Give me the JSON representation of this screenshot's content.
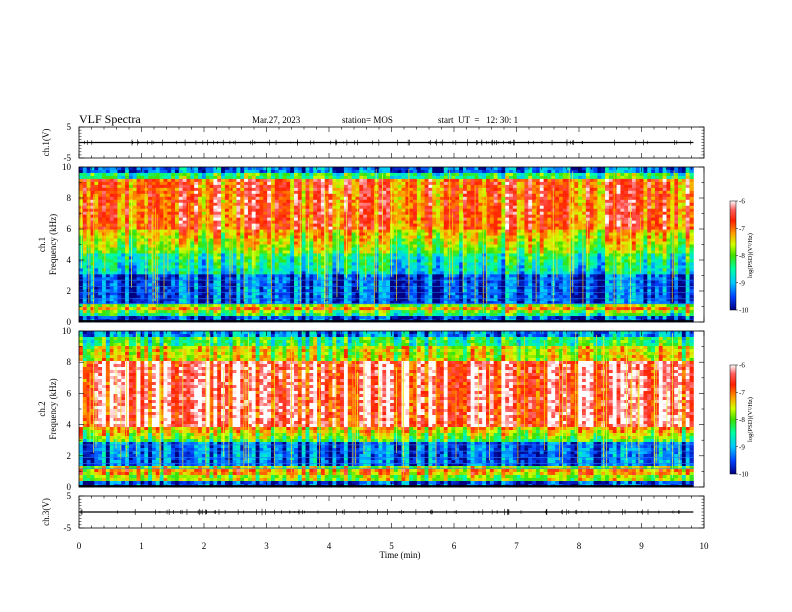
{
  "header": {
    "title": "VLF Spectra",
    "date": "Mar.27, 2023",
    "station": "station= MOS",
    "start": "start  UT  =   12: 30: 1"
  },
  "chart_data": [
    {
      "type": "line",
      "panel": "ch1-waveform",
      "ylabel": "ch.1(V)",
      "ylim": [
        -5,
        5
      ],
      "ytick_labels": [
        "5",
        "-5"
      ],
      "xlim": [
        0,
        10
      ],
      "series": [
        {
          "values_level": 0
        }
      ]
    },
    {
      "type": "heatmap",
      "panel": "ch1-spectrogram",
      "ylabel_channel": "ch.1",
      "ylabel": "Frequency (kHz)",
      "ylim": [
        0,
        10
      ],
      "xlim": [
        0,
        10
      ],
      "data_end_min": 9.83,
      "ytick_labels": [
        "0",
        "2",
        "4",
        "6",
        "8",
        "10"
      ],
      "colorbar": {
        "label": "log(PSD)(V²/Hz)",
        "range": [
          -10,
          -6
        ],
        "tick_labels": [
          "-6",
          "-7",
          "-8",
          "-9",
          "-10"
        ],
        "colors": [
          "#000080",
          "#0040ff",
          "#00c8ff",
          "#00ffa0",
          "#40e000",
          "#d0ff00",
          "#ffa000",
          "#ff2000",
          "#ffffff"
        ]
      }
    },
    {
      "type": "heatmap",
      "panel": "ch2-spectrogram",
      "ylabel_channel": "ch.2",
      "ylabel": "Frequency (kHz)",
      "ylim": [
        0,
        10
      ],
      "xlim": [
        0,
        10
      ],
      "data_end_min": 9.83,
      "ytick_labels": [
        "0",
        "2",
        "4",
        "6",
        "8",
        "10"
      ],
      "colorbar": {
        "label": "log(PSD)(V²/Hz)",
        "range": [
          -10,
          -6
        ],
        "tick_labels": [
          "-6",
          "-7",
          "-8",
          "-9",
          "-10"
        ]
      }
    },
    {
      "type": "line",
      "panel": "ch3-waveform",
      "ylabel": "ch.3(V)",
      "ylim": [
        -5,
        5
      ],
      "ytick_labels": [
        "5",
        "-5"
      ],
      "xlim": [
        0,
        10
      ],
      "xlabel": "Time (min)",
      "xtick_labels": [
        "0",
        "1",
        "2",
        "3",
        "4",
        "5",
        "6",
        "7",
        "8",
        "9",
        "10"
      ],
      "series": [
        {
          "values_level": 0
        }
      ]
    }
  ]
}
